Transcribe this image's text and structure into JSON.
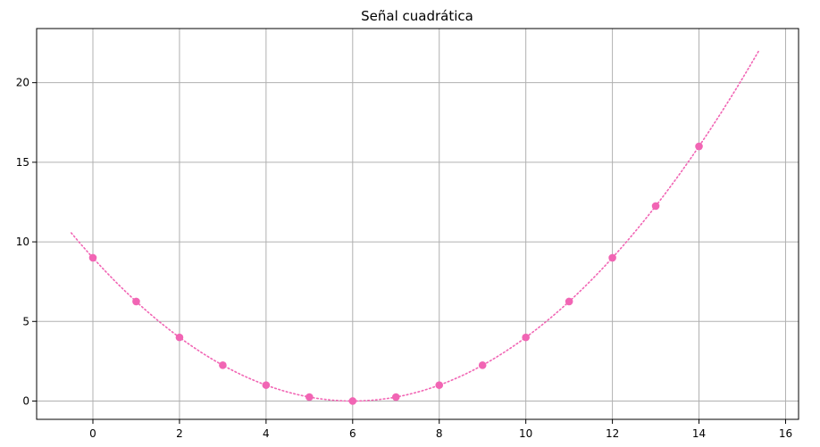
{
  "chart_data": {
    "type": "scatter",
    "title": "Señal cuadrática",
    "xlabel": "",
    "ylabel": "",
    "xlim": [
      -1.3,
      16.3
    ],
    "ylim": [
      -1.15,
      23.4
    ],
    "x_ticks": [
      0,
      2,
      4,
      6,
      8,
      10,
      12,
      14,
      16
    ],
    "y_ticks": [
      0,
      5,
      10,
      15,
      20
    ],
    "grid": true,
    "points": {
      "x": [
        0,
        1,
        2,
        3,
        4,
        5,
        6,
        7,
        8,
        9,
        10,
        11,
        12,
        13,
        14
      ],
      "y": [
        9,
        6.25,
        4,
        2.25,
        1,
        0.25,
        0,
        0.25,
        1,
        2.25,
        4,
        6.25,
        9,
        12.25,
        16
      ],
      "color": "#f165b4"
    },
    "curve": {
      "style": "dotted",
      "x_range": [
        -0.5,
        15.4
      ],
      "formula": "y = (x - 6)^2 / 4",
      "color": "#f165b4"
    }
  }
}
